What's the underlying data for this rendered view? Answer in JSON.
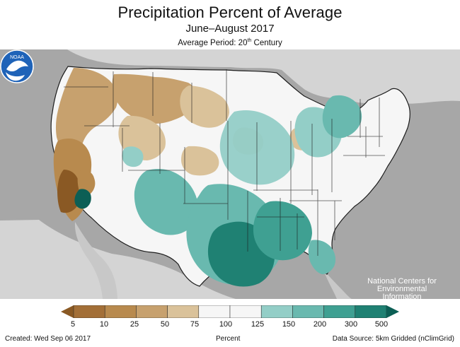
{
  "header": {
    "title": "Precipitation Percent of Average",
    "subtitle": "June–August 2017",
    "average_period_prefix": "Average Period: 20",
    "average_period_suffix": "th",
    "average_period_end": " Century"
  },
  "map": {
    "logo_text": "NOAA",
    "credit_lines": [
      "National Centers for",
      "Environmental",
      "Information"
    ],
    "palette": {
      "very_dry": "#8a5924",
      "dry": "#b88a4e",
      "moderate_dry": "#c7a16e",
      "light_dry": "#dac29a",
      "normal": "#f6f6f6",
      "light_wet": "#93cec7",
      "moderate_wet": "#69b9af",
      "wet": "#3fa092",
      "very_wet": "#1f8173",
      "extreme_wet": "#0c5f55",
      "land_outside": "#d4d4d4",
      "water": "#a7a7a7",
      "boundary": "#1d1d1d"
    }
  },
  "legend": {
    "title": "Percent",
    "ticks": [
      "5",
      "10",
      "25",
      "50",
      "75",
      "100",
      "125",
      "150",
      "200",
      "300",
      "500"
    ],
    "bins": [
      "#8a5924",
      "#a36f37",
      "#b88a4e",
      "#c7a16e",
      "#dac29a",
      "#f6f6f6",
      "#f6f6f6",
      "#93cec7",
      "#69b9af",
      "#3fa092",
      "#1f8173",
      "#0c5f55"
    ]
  },
  "footer": {
    "created": "Created: Wed Sep 06 2017",
    "source": "Data Source: 5km Gridded (nClimGrid)"
  }
}
